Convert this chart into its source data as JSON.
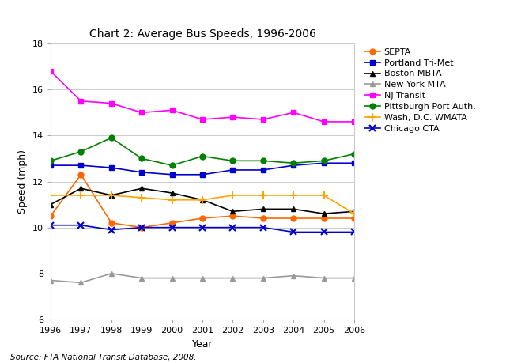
{
  "title": "Chart 2: Average Bus Speeds, 1996-2006",
  "xlabel": "Year",
  "ylabel": "Speed (mph)",
  "ylim": [
    6,
    18
  ],
  "yticks": [
    6,
    8,
    10,
    12,
    14,
    16,
    18
  ],
  "years": [
    1996,
    1997,
    1998,
    1999,
    2000,
    2001,
    2002,
    2003,
    2004,
    2005,
    2006
  ],
  "series": [
    {
      "label": "SEPTA",
      "color": "#FF6600",
      "marker": "o",
      "data": [
        10.5,
        12.3,
        10.2,
        10.0,
        10.2,
        10.4,
        10.5,
        10.4,
        10.4,
        10.4,
        10.4
      ]
    },
    {
      "label": "Portland Tri-Met",
      "color": "#0000CC",
      "marker": "s",
      "data": [
        12.7,
        12.7,
        12.6,
        12.4,
        12.3,
        12.3,
        12.5,
        12.5,
        12.7,
        12.8,
        12.8
      ]
    },
    {
      "label": "Boston MBTA",
      "color": "#000000",
      "marker": "^",
      "data": [
        11.0,
        11.7,
        11.4,
        11.7,
        11.5,
        11.2,
        10.7,
        10.8,
        10.8,
        10.6,
        10.7
      ]
    },
    {
      "label": "New York MTA",
      "color": "#999999",
      "marker": "^",
      "data": [
        7.7,
        7.6,
        8.0,
        7.8,
        7.8,
        7.8,
        7.8,
        7.8,
        7.9,
        7.8,
        7.8
      ]
    },
    {
      "label": "NJ Transit",
      "color": "#FF00FF",
      "marker": "s",
      "data": [
        16.8,
        15.5,
        15.4,
        15.0,
        15.1,
        14.7,
        14.8,
        14.7,
        15.0,
        14.6,
        14.6
      ]
    },
    {
      "label": "Pittsburgh Port Auth.",
      "color": "#008000",
      "marker": "o",
      "data": [
        12.9,
        13.3,
        13.9,
        13.0,
        12.7,
        13.1,
        12.9,
        12.9,
        12.8,
        12.9,
        13.2
      ]
    },
    {
      "label": "Wash, D.C. WMATA",
      "color": "#FFA500",
      "marker": "+",
      "data": [
        11.4,
        11.4,
        11.4,
        11.3,
        11.2,
        11.2,
        11.4,
        11.4,
        11.4,
        11.4,
        10.6
      ]
    },
    {
      "label": "Chicago CTA",
      "color": "#0000CC",
      "marker": "x",
      "data": [
        10.1,
        10.1,
        9.9,
        10.0,
        10.0,
        10.0,
        10.0,
        10.0,
        9.8,
        9.8,
        9.8
      ]
    }
  ],
  "source_text": "Source: FTA National Transit Database, 2008.",
  "background_color": "#FFFFFF",
  "title_fontsize": 10,
  "label_fontsize": 9,
  "tick_fontsize": 8,
  "legend_fontsize": 8
}
